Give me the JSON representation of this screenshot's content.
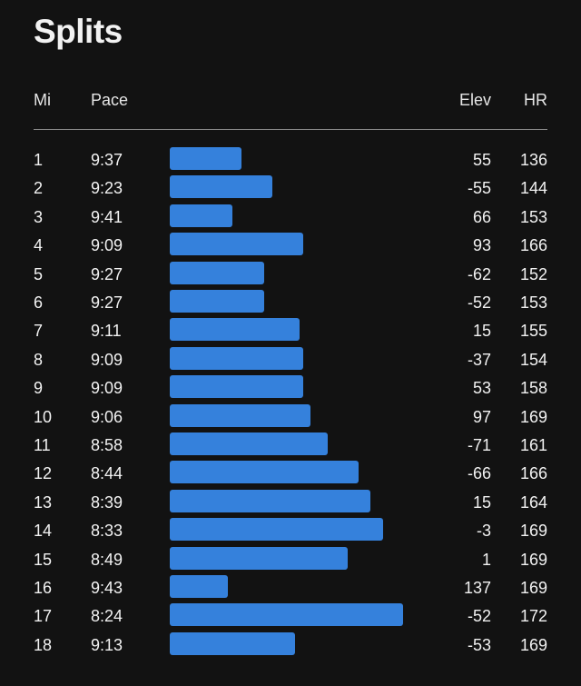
{
  "title": "Splits",
  "headers": {
    "mi": "Mi",
    "pace": "Pace",
    "elev": "Elev",
    "hr": "HR"
  },
  "bar_color": "#3581dc",
  "chart_data": {
    "type": "bar",
    "orientation": "horizontal",
    "categories": [
      "1",
      "2",
      "3",
      "4",
      "5",
      "6",
      "7",
      "8",
      "9",
      "10",
      "11",
      "12",
      "13",
      "14",
      "15",
      "16",
      "17",
      "18"
    ],
    "pace": [
      "9:37",
      "9:23",
      "9:41",
      "9:09",
      "9:27",
      "9:27",
      "9:11",
      "9:09",
      "9:09",
      "9:06",
      "8:58",
      "8:44",
      "8:39",
      "8:33",
      "8:49",
      "9:43",
      "8:24",
      "9:13"
    ],
    "elev": [
      "55",
      "-55",
      "66",
      "93",
      "-62",
      "-52",
      "15",
      "-37",
      "53",
      "97",
      "-71",
      "-66",
      "15",
      "-3",
      "1",
      "137",
      "-52",
      "-53"
    ],
    "hr": [
      "136",
      "144",
      "153",
      "166",
      "152",
      "153",
      "155",
      "154",
      "158",
      "169",
      "161",
      "166",
      "164",
      "169",
      "169",
      "169",
      "172",
      "169"
    ]
  }
}
